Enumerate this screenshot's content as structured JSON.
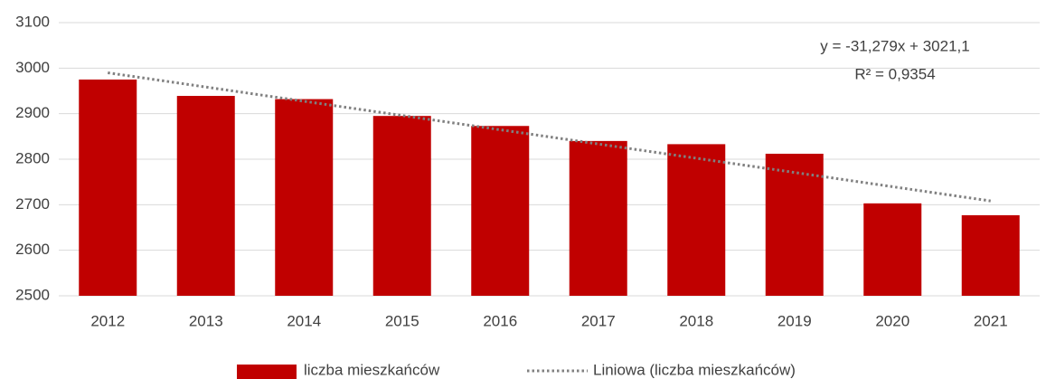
{
  "chart_data": {
    "type": "bar",
    "categories": [
      "2012",
      "2013",
      "2014",
      "2015",
      "2016",
      "2017",
      "2018",
      "2019",
      "2020",
      "2021"
    ],
    "series": [
      {
        "name": "liczba mieszkańców",
        "color": "#c00000",
        "values": [
          2975,
          2939,
          2932,
          2895,
          2873,
          2840,
          2833,
          2812,
          2703,
          2677
        ]
      },
      {
        "name": "Liniowa (liczba mieszkańców)",
        "color": "#808080",
        "style": "dotted-line",
        "values": [
          2989.8,
          2958.5,
          2927.3,
          2896.0,
          2864.7,
          2833.4,
          2802.1,
          2770.9,
          2739.6,
          2708.3
        ]
      }
    ],
    "annotations": [
      "y = -31,279x + 3021,1",
      "R² = 0,9354"
    ],
    "ylim": [
      2500,
      3100
    ],
    "yticks": [
      2500,
      2600,
      2700,
      2800,
      2900,
      3000,
      3100
    ],
    "grid": true,
    "legend": "bottom"
  }
}
